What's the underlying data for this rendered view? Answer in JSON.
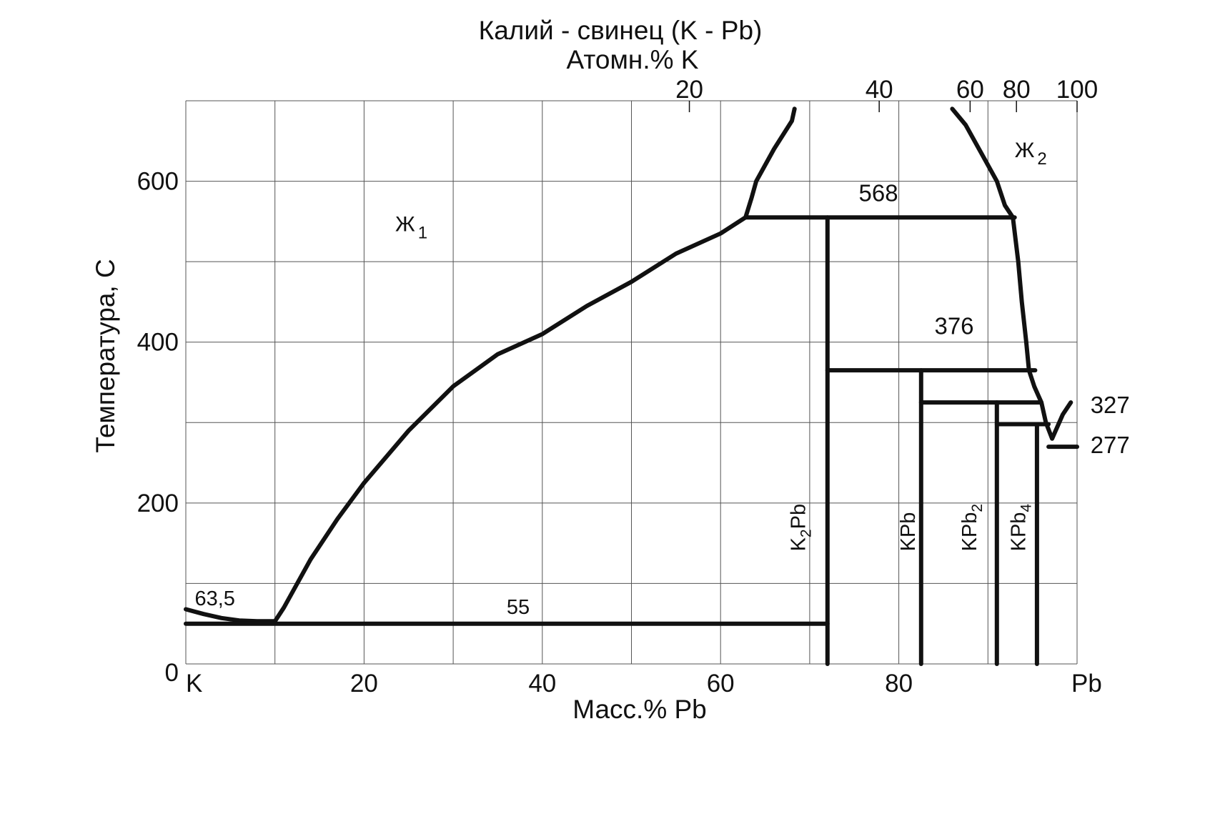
{
  "chart_data": {
    "type": "line",
    "title": "Калий - свинец (K - Pb)",
    "top_axis_label": "Атомн.% K",
    "xlabel": "Масс.% Pb",
    "ylabel": "Температура, С",
    "xlim": [
      0,
      100
    ],
    "ylim": [
      0,
      700
    ],
    "grid": true,
    "x_ticks": [
      {
        "value": 0,
        "label": "K"
      },
      {
        "value": 20,
        "label": "20"
      },
      {
        "value": 40,
        "label": "40"
      },
      {
        "value": 60,
        "label": "60"
      },
      {
        "value": 80,
        "label": "80"
      },
      {
        "value": 100,
        "label": "Pb"
      }
    ],
    "y_ticks": [
      {
        "value": 0,
        "label": "0"
      },
      {
        "value": 200,
        "label": "200"
      },
      {
        "value": 400,
        "label": "400"
      },
      {
        "value": 600,
        "label": "600"
      }
    ],
    "top_ticks": [
      {
        "x": 56.5,
        "label": "20"
      },
      {
        "x": 77.8,
        "label": "40"
      },
      {
        "x": 88.0,
        "label": "60"
      },
      {
        "x": 93.2,
        "label": "80"
      },
      {
        "x": 100,
        "label": "100"
      }
    ],
    "series": [
      {
        "points": [
          [
            0,
            68
          ],
          [
            2,
            62
          ],
          [
            4,
            57
          ],
          [
            6,
            54
          ],
          [
            8,
            53
          ],
          [
            10,
            53
          ],
          [
            11,
            70
          ],
          [
            14,
            130
          ],
          [
            17,
            180
          ],
          [
            20,
            225
          ],
          [
            25,
            290
          ],
          [
            30,
            345
          ],
          [
            35,
            385
          ],
          [
            40,
            410
          ],
          [
            45,
            445
          ],
          [
            50,
            475
          ],
          [
            55,
            510
          ],
          [
            60,
            535
          ],
          [
            62.8,
            555
          ]
        ]
      },
      {
        "points": [
          [
            62.8,
            555
          ],
          [
            63.5,
            580
          ],
          [
            64,
            600
          ],
          [
            66,
            640
          ],
          [
            68,
            675
          ],
          [
            68.3,
            690
          ]
        ]
      },
      {
        "points": [
          [
            86,
            690
          ],
          [
            87.5,
            670
          ],
          [
            89.5,
            630
          ],
          [
            91,
            600
          ],
          [
            91.9,
            570
          ],
          [
            92.8,
            555
          ],
          [
            93.4,
            500
          ],
          [
            93.8,
            450
          ],
          [
            94.3,
            400
          ],
          [
            94.6,
            365
          ],
          [
            95.2,
            345
          ],
          [
            96,
            325
          ],
          [
            96.5,
            300
          ],
          [
            97.2,
            280
          ],
          [
            98.4,
            310
          ],
          [
            99.3,
            325
          ]
        ]
      },
      {
        "points": [
          [
            0,
            50
          ],
          [
            72,
            50
          ]
        ]
      },
      {
        "points": [
          [
            62.8,
            555
          ],
          [
            93,
            555
          ]
        ]
      },
      {
        "points": [
          [
            72,
            0
          ],
          [
            72,
            555
          ]
        ]
      },
      {
        "points": [
          [
            72,
            365
          ],
          [
            95.3,
            365
          ]
        ]
      },
      {
        "points": [
          [
            82.5,
            0
          ],
          [
            82.5,
            365
          ]
        ]
      },
      {
        "points": [
          [
            82.5,
            325
          ],
          [
            96,
            325
          ]
        ]
      },
      {
        "points": [
          [
            91,
            0
          ],
          [
            91,
            325
          ]
        ]
      },
      {
        "points": [
          [
            91,
            298
          ],
          [
            96.8,
            298
          ]
        ]
      },
      {
        "points": [
          [
            95.5,
            0
          ],
          [
            95.5,
            298
          ]
        ]
      },
      {
        "points": [
          [
            96.8,
            270
          ],
          [
            100,
            270
          ]
        ]
      }
    ],
    "annotations": [
      {
        "text": "568",
        "x": 75.5,
        "y": 575
      },
      {
        "text": "376",
        "x": 84,
        "y": 410
      },
      {
        "text": "327",
        "x": 101.5,
        "y": 312
      },
      {
        "text": "277",
        "x": 101.5,
        "y": 262
      },
      {
        "text": "55",
        "x": 36,
        "y": 62
      },
      {
        "text": "63,5",
        "x": 1,
        "y": 73
      }
    ],
    "phases": [
      {
        "label": "Ж",
        "sub": "1",
        "x": 23.5,
        "y": 538
      },
      {
        "label": "Ж",
        "sub": "2",
        "x": 93,
        "y": 630
      }
    ],
    "compounds": [
      {
        "label": "K",
        "sub": "2",
        "tail": "Pb",
        "x": 69.5,
        "y": 140
      },
      {
        "label": "KPb",
        "sub": "",
        "tail": "",
        "x": 81.8,
        "y": 140
      },
      {
        "label": "KPb",
        "sub": "2",
        "tail": "",
        "x": 88.7,
        "y": 140
      },
      {
        "label": "KPb",
        "sub": "4",
        "tail": "",
        "x": 94.2,
        "y": 140
      }
    ]
  }
}
